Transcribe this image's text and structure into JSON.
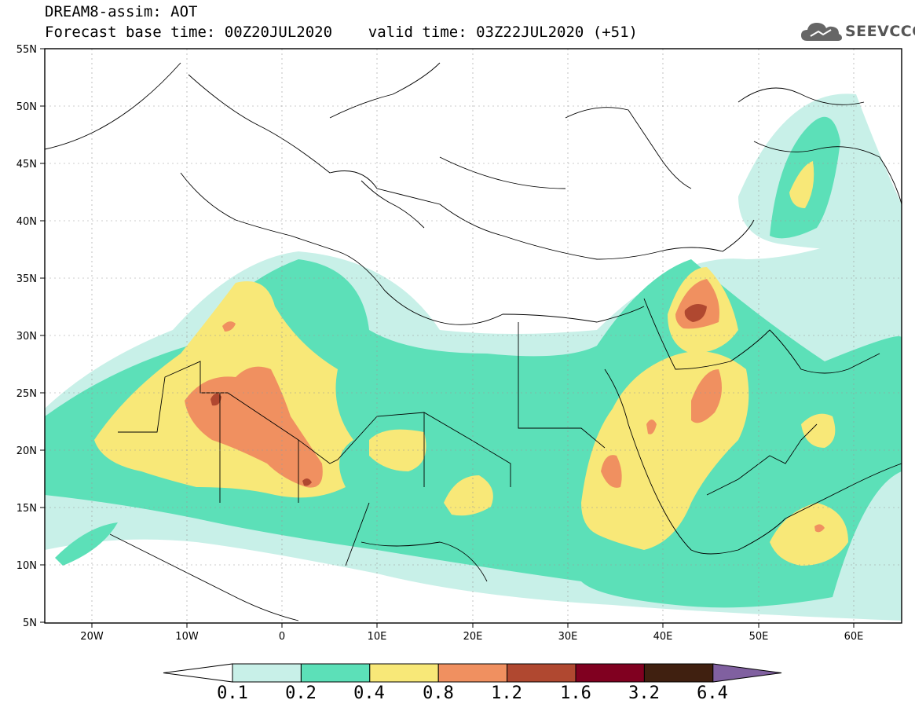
{
  "header": {
    "title_line1": "DREAM8-assim: AOT",
    "title_line2": "Forecast base time: 00Z20JUL2020    valid time: 03Z22JUL2020 (+51)",
    "logo_text": "SEEVCCC"
  },
  "axes": {
    "lat_labels": [
      "55N",
      "50N",
      "45N",
      "40N",
      "35N",
      "30N",
      "25N",
      "20N",
      "15N",
      "10N",
      "5N"
    ],
    "lon_labels": [
      "20W",
      "10W",
      "0",
      "10E",
      "20E",
      "30E",
      "40E",
      "50E",
      "60E"
    ]
  },
  "colorbar": {
    "labels": [
      "0.1",
      "0.2",
      "0.4",
      "0.8",
      "1.2",
      "1.6",
      "3.2",
      "6.4"
    ],
    "colors": [
      "#ffffff",
      "#c8f0e8",
      "#5ce0b8",
      "#f8e878",
      "#f09060",
      "#b04830",
      "#800020",
      "#402010",
      "#8060a0"
    ]
  },
  "chart_data": {
    "type": "heatmap",
    "title": "DREAM8-assim: AOT",
    "subtitle": "Forecast base time: 00Z20JUL2020    valid time: 03Z22JUL2020 (+51)",
    "xlim": [
      -25,
      65
    ],
    "ylim": [
      5,
      55
    ],
    "levels": [
      0.1,
      0.2,
      0.4,
      0.8,
      1.2,
      1.6,
      3.2,
      6.4
    ],
    "regions": [
      {
        "level": 0.1,
        "lon": [
          -25,
          65
        ],
        "lat": [
          5,
          35
        ]
      },
      {
        "level": 0.4,
        "lon": [
          -17,
          5
        ],
        "lat": [
          16,
          35
        ]
      },
      {
        "level": 0.8,
        "lon": [
          -8,
          5
        ],
        "lat": [
          16,
          26
        ]
      },
      {
        "level": 1.2,
        "lon": [
          -6,
          -5
        ],
        "lat": [
          24,
          25
        ]
      },
      {
        "level": 0.8,
        "lon": [
          41,
          46
        ],
        "lat": [
          31,
          35
        ]
      },
      {
        "level": 1.2,
        "lon": [
          43,
          45
        ],
        "lat": [
          32,
          33
        ]
      }
    ]
  }
}
